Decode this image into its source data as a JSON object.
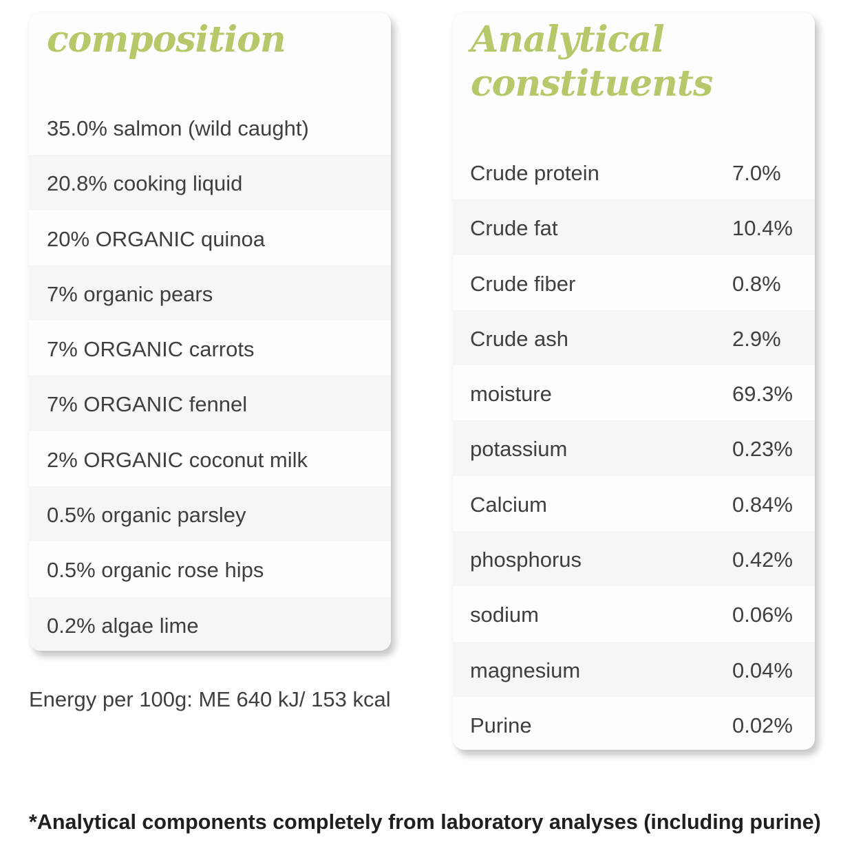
{
  "composition": {
    "title": "composition",
    "items": [
      "35.0% salmon (wild caught)",
      "20.8% cooking liquid",
      "20% ORGANIC quinoa",
      "7% organic pears",
      "7% ORGANIC carrots",
      "7% ORGANIC fennel",
      "2% ORGANIC coconut milk",
      "0.5% organic parsley",
      "0.5% organic rose hips",
      "0.2% algae lime"
    ]
  },
  "energy": "Energy per 100g: ME 640 kJ/ 153 kcal",
  "analytical": {
    "title_line1": "Analytical",
    "title_line2": "constituents",
    "items": [
      {
        "name": "Crude protein",
        "value": "7.0%"
      },
      {
        "name": "Crude fat",
        "value": "10.4%"
      },
      {
        "name": "Crude fiber",
        "value": "0.8%"
      },
      {
        "name": "Crude ash",
        "value": "2.9%"
      },
      {
        "name": "moisture",
        "value": "69.3%"
      },
      {
        "name": "potassium",
        "value": "0.23%"
      },
      {
        "name": "Calcium",
        "value": "0.84%"
      },
      {
        "name": "phosphorus",
        "value": "0.42%"
      },
      {
        "name": "sodium",
        "value": "0.06%"
      },
      {
        "name": "magnesium",
        "value": "0.04%"
      },
      {
        "name": "Purine",
        "value": "0.02%"
      }
    ]
  },
  "footnote": "*Analytical components completely from laboratory analyses (including purine)",
  "colors": {
    "accent": "#b5c96a",
    "text": "#3f3f3f"
  }
}
